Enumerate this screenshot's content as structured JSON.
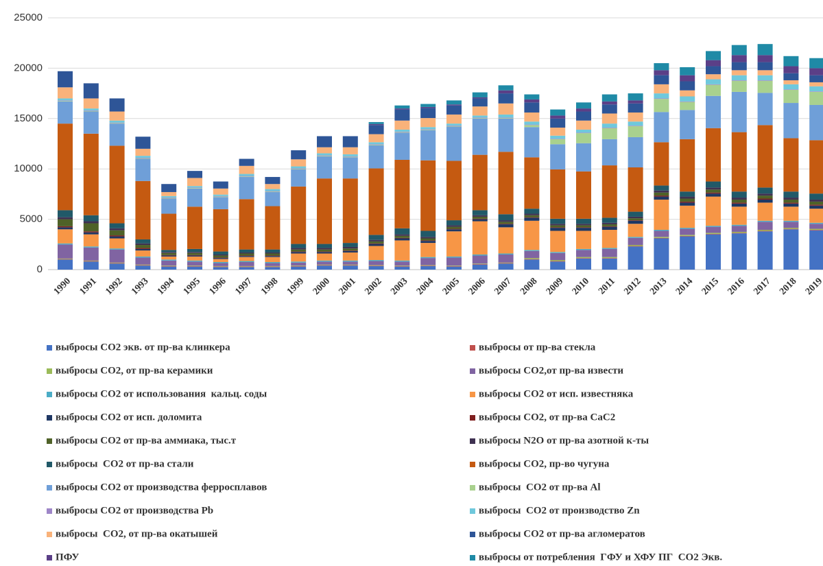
{
  "chart_data": {
    "type": "stacked_bar",
    "categories": [
      "1990",
      "1991",
      "1992",
      "1993",
      "1994",
      "1995",
      "1996",
      "1997",
      "1998",
      "1999",
      "2000",
      "2001",
      "2002",
      "2003",
      "2004",
      "2005",
      "2006",
      "2007",
      "2008",
      "2009",
      "2010",
      "2011",
      "2012",
      "2013",
      "2014",
      "2015",
      "2016",
      "2017",
      "2018",
      "2019"
    ],
    "ylim": [
      0,
      25000
    ],
    "yticks": [
      0,
      5000,
      10000,
      15000,
      20000,
      25000
    ],
    "grid": true,
    "series": [
      {
        "name": "выбросы CO2 экв. от пр-ва клинкера",
        "color": "#4472c4",
        "values": [
          1000,
          800,
          600,
          400,
          300,
          300,
          250,
          250,
          250,
          300,
          400,
          400,
          350,
          300,
          350,
          300,
          500,
          600,
          1000,
          800,
          1100,
          1100,
          2300,
          3100,
          3300,
          3500,
          3600,
          3800,
          4000,
          3900
        ]
      },
      {
        "name": "выбросы от пр-ва стекла",
        "color": "#c0504d",
        "values": [
          50,
          50,
          50,
          50,
          50,
          50,
          50,
          50,
          50,
          50,
          50,
          50,
          50,
          50,
          50,
          50,
          50,
          50,
          50,
          50,
          50,
          50,
          50,
          50,
          50,
          50,
          50,
          50,
          50,
          50
        ]
      },
      {
        "name": "выбросы CO2, от пр-ва керамики",
        "color": "#9bbb59",
        "values": [
          50,
          50,
          50,
          50,
          50,
          50,
          50,
          50,
          50,
          50,
          50,
          50,
          50,
          50,
          50,
          50,
          50,
          50,
          100,
          100,
          100,
          100,
          100,
          100,
          100,
          100,
          100,
          100,
          100,
          100
        ]
      },
      {
        "name": "выбросы CO2,от пр-ва извести",
        "color": "#8064a2",
        "values": [
          1400,
          1300,
          1300,
          700,
          500,
          400,
          300,
          400,
          300,
          300,
          300,
          300,
          400,
          400,
          700,
          800,
          800,
          800,
          700,
          700,
          700,
          800,
          700,
          600,
          600,
          600,
          600,
          800,
          600,
          500
        ]
      },
      {
        "name": "выбросы CO2 от использования  кальц. соды",
        "color": "#4bacc6",
        "values": [
          100,
          100,
          100,
          100,
          100,
          100,
          100,
          100,
          100,
          100,
          100,
          100,
          100,
          100,
          100,
          100,
          100,
          100,
          100,
          100,
          100,
          100,
          100,
          100,
          100,
          100,
          100,
          100,
          100,
          100
        ]
      },
      {
        "name": "выбросы CO2 от исп. известняка",
        "color": "#f79646",
        "values": [
          1400,
          1200,
          1000,
          600,
          300,
          400,
          300,
          400,
          500,
          800,
          700,
          800,
          1400,
          2000,
          1400,
          2500,
          3300,
          2600,
          2900,
          2100,
          1800,
          1800,
          1300,
          3000,
          2200,
          2900,
          1800,
          1800,
          1400,
          1400
        ]
      },
      {
        "name": "выбросы CO2 от исп. доломита",
        "color": "#1f3864",
        "values": [
          200,
          200,
          200,
          150,
          100,
          100,
          100,
          100,
          100,
          150,
          150,
          150,
          200,
          200,
          200,
          200,
          200,
          300,
          300,
          300,
          300,
          300,
          300,
          300,
          300,
          300,
          300,
          300,
          300,
          300
        ]
      },
      {
        "name": "выбросы CO2, от пр-ва CaC2",
        "color": "#7f1f1f",
        "values": [
          100,
          100,
          100,
          100,
          50,
          50,
          50,
          50,
          50,
          50,
          50,
          50,
          50,
          50,
          50,
          50,
          50,
          50,
          50,
          50,
          50,
          50,
          50,
          100,
          100,
          100,
          100,
          100,
          100,
          100
        ]
      },
      {
        "name": "выбросы CO2 от пр-ва аммиака, тыс.т",
        "color": "#4f6228",
        "values": [
          700,
          800,
          500,
          300,
          200,
          200,
          200,
          200,
          200,
          200,
          200,
          200,
          200,
          200,
          200,
          200,
          200,
          200,
          200,
          200,
          200,
          200,
          200,
          300,
          300,
          300,
          300,
          300,
          300,
          300
        ]
      },
      {
        "name": "выбросы N2O от пр-ва азотной к-ты",
        "color": "#3f3151",
        "values": [
          200,
          200,
          200,
          150,
          100,
          100,
          100,
          100,
          100,
          150,
          150,
          150,
          150,
          150,
          150,
          150,
          150,
          150,
          150,
          150,
          150,
          150,
          150,
          200,
          200,
          200,
          200,
          200,
          200,
          200
        ]
      },
      {
        "name": "выбросы  CO2 от пр-ва стали",
        "color": "#215968",
        "values": [
          700,
          600,
          500,
          400,
          200,
          300,
          300,
          300,
          300,
          400,
          400,
          400,
          500,
          600,
          600,
          500,
          500,
          600,
          500,
          500,
          500,
          500,
          500,
          500,
          500,
          600,
          600,
          600,
          600,
          600
        ]
      },
      {
        "name": "выбросы CO2, пр-во чугуна",
        "color": "#c55a11",
        "values": [
          8600,
          8100,
          7700,
          5800,
          3600,
          4200,
          4200,
          5000,
          4300,
          5700,
          6500,
          6400,
          6600,
          6800,
          7000,
          5900,
          5500,
          6200,
          5100,
          4900,
          4700,
          5200,
          4400,
          4300,
          5200,
          5300,
          5900,
          6200,
          5300,
          5300
        ]
      },
      {
        "name": "выбросы CO2 от производства ферросплавов",
        "color": "#6f9fd8",
        "values": [
          2200,
          2200,
          2200,
          2200,
          1500,
          1800,
          1200,
          2200,
          1400,
          1700,
          2200,
          2100,
          2300,
          2700,
          3000,
          3400,
          3600,
          3300,
          3000,
          2500,
          2800,
          2600,
          3000,
          3000,
          2900,
          3200,
          4000,
          3200,
          3500,
          3500
        ]
      },
      {
        "name": "выбросы  CO2 от пр-ва Al",
        "color": "#a9d18e",
        "values": [
          50,
          50,
          50,
          50,
          50,
          50,
          50,
          50,
          50,
          50,
          50,
          50,
          50,
          50,
          50,
          50,
          50,
          50,
          200,
          500,
          1000,
          1100,
          1100,
          1300,
          800,
          1100,
          1100,
          1200,
          1300,
          1300
        ]
      },
      {
        "name": "выбросы CO2 от производства Pb",
        "color": "#9e86c8",
        "values": [
          50,
          50,
          50,
          50,
          50,
          50,
          50,
          50,
          50,
          50,
          50,
          50,
          50,
          50,
          50,
          50,
          50,
          50,
          50,
          50,
          50,
          50,
          50,
          50,
          50,
          50,
          50,
          50,
          50,
          50
        ]
      },
      {
        "name": "выбросы  CO2 от производство Zn",
        "color": "#6fc8dc",
        "values": [
          200,
          200,
          200,
          200,
          150,
          150,
          150,
          200,
          200,
          200,
          200,
          200,
          200,
          200,
          200,
          200,
          200,
          300,
          300,
          300,
          300,
          400,
          400,
          500,
          500,
          500,
          500,
          500,
          500,
          500
        ]
      },
      {
        "name": "выбросы  CO2, от пр-ва окатышей",
        "color": "#f9b27a",
        "values": [
          1100,
          1000,
          900,
          700,
          400,
          800,
          600,
          800,
          500,
          700,
          600,
          700,
          800,
          900,
          900,
          900,
          900,
          1100,
          900,
          800,
          900,
          1000,
          900,
          900,
          600,
          500,
          500,
          500,
          400,
          400
        ]
      },
      {
        "name": "выбросы CO2 от пр-ва агломератов",
        "color": "#2e5597",
        "values": [
          1600,
          1500,
          1300,
          1200,
          800,
          700,
          700,
          700,
          700,
          900,
          1100,
          1100,
          900,
          1100,
          1000,
          900,
          800,
          1000,
          1000,
          900,
          900,
          900,
          900,
          900,
          900,
          800,
          800,
          800,
          700,
          700
        ]
      },
      {
        "name": "ПФУ",
        "color": "#5b3f87",
        "values": [
          0,
          0,
          0,
          0,
          0,
          0,
          0,
          0,
          0,
          0,
          0,
          0,
          100,
          100,
          100,
          100,
          100,
          300,
          300,
          300,
          300,
          300,
          300,
          500,
          600,
          600,
          700,
          700,
          700,
          700
        ]
      },
      {
        "name": "выбросы от потребления  ГФУ и ХФУ ПГ  CO2 Экв.",
        "color": "#1f8aa6",
        "values": [
          0,
          0,
          0,
          0,
          0,
          0,
          0,
          0,
          0,
          0,
          0,
          0,
          200,
          300,
          300,
          400,
          500,
          500,
          500,
          600,
          600,
          700,
          700,
          700,
          800,
          900,
          1000,
          1100,
          1000,
          1000
        ]
      }
    ]
  }
}
